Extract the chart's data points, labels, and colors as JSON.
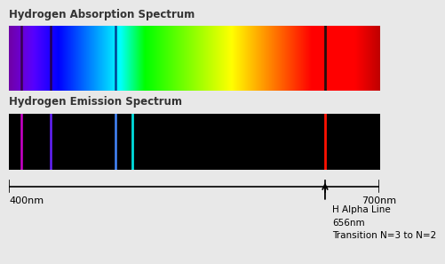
{
  "title_absorption": "Hydrogen Absorption Spectrum",
  "title_emission": "Hydrogen Emission Spectrum",
  "wavelength_min": 400,
  "wavelength_max": 700,
  "absorption_lines": [
    {
      "wl": 410,
      "color": "#330044",
      "lw": 1.8
    },
    {
      "wl": 434,
      "color": "#220044",
      "lw": 1.8
    },
    {
      "wl": 486,
      "color": "#003388",
      "lw": 1.8
    },
    {
      "wl": 656,
      "color": "#111111",
      "lw": 2.0
    }
  ],
  "emission_lines": [
    {
      "wl": 410,
      "color": "#cc00cc",
      "lw": 1.8
    },
    {
      "wl": 434,
      "color": "#6622ff",
      "lw": 1.8
    },
    {
      "wl": 486,
      "color": "#4488ff",
      "lw": 1.8
    },
    {
      "wl": 500,
      "color": "#00dddd",
      "lw": 2.0
    },
    {
      "wl": 656,
      "color": "#ff1100",
      "lw": 2.0
    }
  ],
  "ruler_400_label": "400nm",
  "ruler_700_label": "700nm",
  "arrow_wl": 656,
  "annotation_lines": [
    "H Alpha Line",
    "656nm",
    "Transition N=3 to N=2"
  ],
  "bg_color": "#e8e8e8"
}
